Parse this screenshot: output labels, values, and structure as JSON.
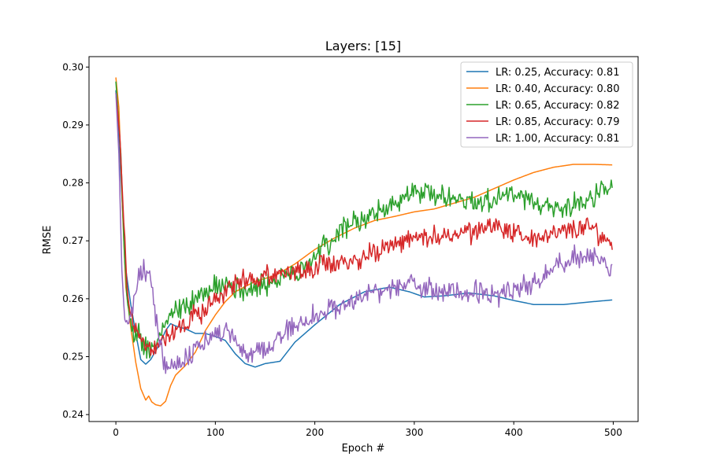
{
  "chart_data": {
    "type": "line",
    "title": "Layers: [15]",
    "xlabel": "Epoch #",
    "ylabel": "RMSE",
    "xlim": [
      -27,
      525
    ],
    "ylim": [
      0.2388,
      0.3018
    ],
    "xticks": [
      0,
      100,
      200,
      300,
      400,
      500
    ],
    "yticks": [
      0.24,
      0.25,
      0.26,
      0.27,
      0.28,
      0.29,
      0.3
    ],
    "ytick_labels": [
      "0.24",
      "0.25",
      "0.26",
      "0.27",
      "0.28",
      "0.29",
      "0.30"
    ],
    "legend_position": "top-right",
    "grid": false,
    "series": [
      {
        "name": "LR: 0.25, Accuracy: 0.81",
        "color": "#1f77b4",
        "noise": 0,
        "points": [
          [
            0,
            0.296
          ],
          [
            5,
            0.281
          ],
          [
            10,
            0.265
          ],
          [
            15,
            0.259
          ],
          [
            20,
            0.254
          ],
          [
            25,
            0.2495
          ],
          [
            30,
            0.2487
          ],
          [
            35,
            0.2495
          ],
          [
            40,
            0.251
          ],
          [
            45,
            0.2525
          ],
          [
            50,
            0.2545
          ],
          [
            55,
            0.2557
          ],
          [
            60,
            0.2553
          ],
          [
            70,
            0.2548
          ],
          [
            80,
            0.254
          ],
          [
            90,
            0.254
          ],
          [
            100,
            0.2535
          ],
          [
            110,
            0.2528
          ],
          [
            120,
            0.2505
          ],
          [
            130,
            0.2488
          ],
          [
            140,
            0.2482
          ],
          [
            150,
            0.2488
          ],
          [
            165,
            0.2492
          ],
          [
            180,
            0.2525
          ],
          [
            200,
            0.2555
          ],
          [
            225,
            0.259
          ],
          [
            250,
            0.2612
          ],
          [
            275,
            0.262
          ],
          [
            295,
            0.2612
          ],
          [
            310,
            0.2603
          ],
          [
            330,
            0.2605
          ],
          [
            355,
            0.261
          ],
          [
            380,
            0.2605
          ],
          [
            400,
            0.2597
          ],
          [
            420,
            0.259
          ],
          [
            450,
            0.259
          ],
          [
            480,
            0.2595
          ],
          [
            500,
            0.2598
          ]
        ]
      },
      {
        "name": "LR: 0.40, Accuracy: 0.80",
        "color": "#ff7f0e",
        "noise": 0,
        "points": [
          [
            0,
            0.2982
          ],
          [
            3,
            0.293
          ],
          [
            7,
            0.274
          ],
          [
            10,
            0.262
          ],
          [
            15,
            0.255
          ],
          [
            20,
            0.249
          ],
          [
            25,
            0.2445
          ],
          [
            30,
            0.2425
          ],
          [
            33,
            0.2432
          ],
          [
            36,
            0.2422
          ],
          [
            40,
            0.2417
          ],
          [
            45,
            0.2415
          ],
          [
            50,
            0.2423
          ],
          [
            55,
            0.245
          ],
          [
            60,
            0.2468
          ],
          [
            70,
            0.2485
          ],
          [
            80,
            0.2508
          ],
          [
            90,
            0.2545
          ],
          [
            100,
            0.2572
          ],
          [
            110,
            0.2595
          ],
          [
            120,
            0.2612
          ],
          [
            140,
            0.263
          ],
          [
            160,
            0.264
          ],
          [
            180,
            0.266
          ],
          [
            200,
            0.2685
          ],
          [
            220,
            0.2705
          ],
          [
            240,
            0.2722
          ],
          [
            260,
            0.2735
          ],
          [
            280,
            0.2742
          ],
          [
            300,
            0.275
          ],
          [
            320,
            0.2755
          ],
          [
            340,
            0.2765
          ],
          [
            360,
            0.2775
          ],
          [
            380,
            0.279
          ],
          [
            400,
            0.2805
          ],
          [
            420,
            0.2818
          ],
          [
            440,
            0.2827
          ],
          [
            460,
            0.2832
          ],
          [
            480,
            0.2832
          ],
          [
            500,
            0.2831
          ]
        ]
      },
      {
        "name": "LR: 0.65, Accuracy: 0.82",
        "color": "#2ca02c",
        "noise": 0.0016,
        "points": [
          [
            0,
            0.2975
          ],
          [
            5,
            0.285
          ],
          [
            8,
            0.27
          ],
          [
            12,
            0.259
          ],
          [
            16,
            0.2545
          ],
          [
            20,
            0.253
          ],
          [
            25,
            0.2535
          ],
          [
            30,
            0.2515
          ],
          [
            35,
            0.2508
          ],
          [
            40,
            0.252
          ],
          [
            45,
            0.254
          ],
          [
            50,
            0.2565
          ],
          [
            60,
            0.2575
          ],
          [
            80,
            0.26
          ],
          [
            100,
            0.2625
          ],
          [
            120,
            0.2618
          ],
          [
            140,
            0.2622
          ],
          [
            160,
            0.2628
          ],
          [
            180,
            0.2645
          ],
          [
            200,
            0.2675
          ],
          [
            220,
            0.2708
          ],
          [
            240,
            0.2735
          ],
          [
            260,
            0.2745
          ],
          [
            280,
            0.2765
          ],
          [
            300,
            0.2785
          ],
          [
            320,
            0.278
          ],
          [
            340,
            0.2775
          ],
          [
            360,
            0.2768
          ],
          [
            380,
            0.2775
          ],
          [
            400,
            0.2782
          ],
          [
            420,
            0.276
          ],
          [
            440,
            0.2755
          ],
          [
            460,
            0.2765
          ],
          [
            480,
            0.2775
          ],
          [
            500,
            0.2795
          ]
        ]
      },
      {
        "name": "LR: 0.85, Accuracy: 0.79",
        "color": "#d62728",
        "noise": 0.0014,
        "points": [
          [
            0,
            0.2955
          ],
          [
            4,
            0.288
          ],
          [
            8,
            0.273
          ],
          [
            12,
            0.26
          ],
          [
            18,
            0.2555
          ],
          [
            24,
            0.2535
          ],
          [
            30,
            0.2518
          ],
          [
            35,
            0.251
          ],
          [
            40,
            0.252
          ],
          [
            50,
            0.253
          ],
          [
            60,
            0.255
          ],
          [
            70,
            0.2565
          ],
          [
            80,
            0.2575
          ],
          [
            90,
            0.258
          ],
          [
            100,
            0.2605
          ],
          [
            120,
            0.2625
          ],
          [
            140,
            0.2635
          ],
          [
            160,
            0.2645
          ],
          [
            180,
            0.2645
          ],
          [
            200,
            0.2655
          ],
          [
            220,
            0.2663
          ],
          [
            240,
            0.2668
          ],
          [
            260,
            0.268
          ],
          [
            280,
            0.2695
          ],
          [
            300,
            0.2705
          ],
          [
            320,
            0.2708
          ],
          [
            340,
            0.271
          ],
          [
            360,
            0.2715
          ],
          [
            380,
            0.2725
          ],
          [
            400,
            0.2712
          ],
          [
            420,
            0.2705
          ],
          [
            440,
            0.271
          ],
          [
            460,
            0.272
          ],
          [
            480,
            0.2722
          ],
          [
            490,
            0.2705
          ],
          [
            500,
            0.2695
          ]
        ]
      },
      {
        "name": "LR: 1.00, Accuracy: 0.81",
        "color": "#9467bd",
        "noise": 0.0015,
        "points": [
          [
            0,
            0.2955
          ],
          [
            3,
            0.285
          ],
          [
            6,
            0.265
          ],
          [
            9,
            0.2558
          ],
          [
            13,
            0.256
          ],
          [
            17,
            0.2588
          ],
          [
            22,
            0.2628
          ],
          [
            28,
            0.2652
          ],
          [
            33,
            0.2648
          ],
          [
            37,
            0.262
          ],
          [
            40,
            0.2565
          ],
          [
            45,
            0.2515
          ],
          [
            50,
            0.2488
          ],
          [
            60,
            0.2483
          ],
          [
            70,
            0.2495
          ],
          [
            80,
            0.2515
          ],
          [
            90,
            0.2525
          ],
          [
            100,
            0.2535
          ],
          [
            110,
            0.2545
          ],
          [
            120,
            0.2525
          ],
          [
            130,
            0.2503
          ],
          [
            140,
            0.2505
          ],
          [
            150,
            0.2518
          ],
          [
            160,
            0.2528
          ],
          [
            180,
            0.2555
          ],
          [
            200,
            0.257
          ],
          [
            220,
            0.2583
          ],
          [
            240,
            0.2595
          ],
          [
            260,
            0.2612
          ],
          [
            280,
            0.2618
          ],
          [
            300,
            0.2625
          ],
          [
            320,
            0.2615
          ],
          [
            340,
            0.261
          ],
          [
            360,
            0.261
          ],
          [
            380,
            0.2605
          ],
          [
            400,
            0.2615
          ],
          [
            420,
            0.263
          ],
          [
            440,
            0.265
          ],
          [
            460,
            0.2672
          ],
          [
            480,
            0.2678
          ],
          [
            500,
            0.2655
          ]
        ]
      }
    ]
  }
}
